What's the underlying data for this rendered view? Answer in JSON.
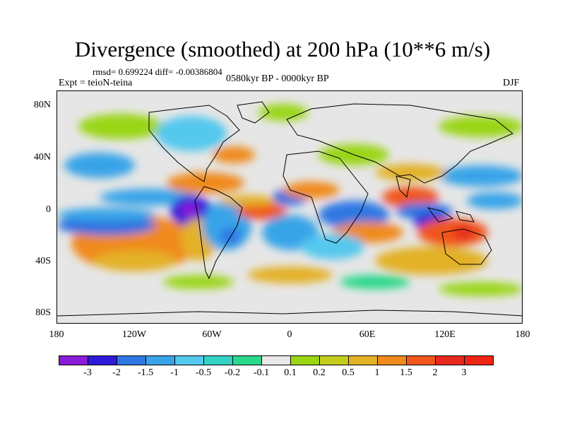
{
  "title": "Divergence (smoothed) at 200 hPa (10**6 m/s)",
  "rmsd_text": "rmsd= 0.699224 diff= -0.00386804",
  "expt_text": "Expt = teioN-teina",
  "period_text": "0580kyr BP - 0000kyr BP",
  "season_text": "DJF",
  "y_ticks": [
    "80N",
    "40N",
    "0",
    "40S",
    "80S"
  ],
  "x_ticks": [
    "180",
    "120W",
    "60W",
    "0",
    "60E",
    "120E",
    "180"
  ],
  "colorbar": {
    "labels": [
      "-3",
      "-2",
      "-1.5",
      "-1",
      "-0.5",
      "-0.2",
      "-0.1",
      "0.1",
      "0.2",
      "0.5",
      "1",
      "1.5",
      "2",
      "3"
    ],
    "colors": [
      "#8a1bd7",
      "#2e1ad8",
      "#2f78e3",
      "#39a4e8",
      "#55c8ee",
      "#33d2c4",
      "#29d88a",
      "#e8e8e8",
      "#9ad612",
      "#c4cd1c",
      "#e3b125",
      "#f08a1c",
      "#f0561b",
      "#e7291f",
      "#f02414"
    ]
  },
  "colors": {
    "neutral": "#e6e6e6",
    "coast": "#000000"
  }
}
